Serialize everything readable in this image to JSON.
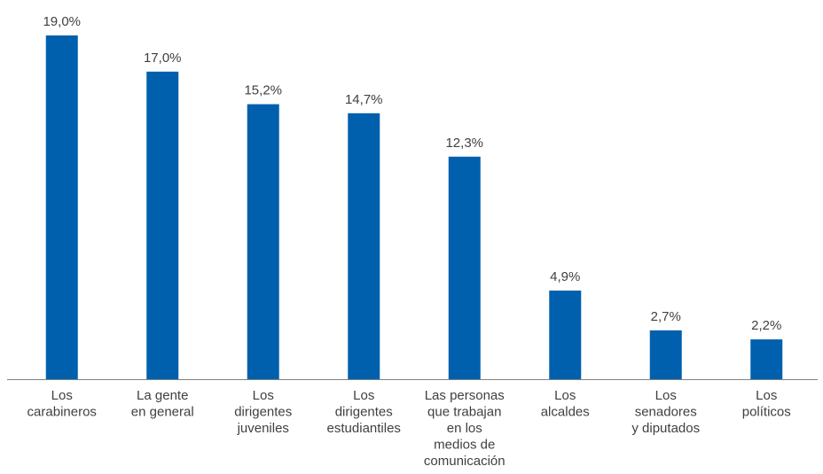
{
  "chart_data": {
    "type": "bar",
    "categories": [
      [
        "Los",
        "carabineros"
      ],
      [
        "La gente",
        "en general"
      ],
      [
        "Los",
        "dirigentes",
        "juveniles"
      ],
      [
        "Los",
        "dirigentes",
        "estudiantiles"
      ],
      [
        "Las personas",
        "que trabajan",
        "en los",
        "medios de",
        "comunicación"
      ],
      [
        "Los",
        "alcaldes"
      ],
      [
        "Los",
        "senadores",
        "y diputados"
      ],
      [
        "Los",
        "políticos"
      ]
    ],
    "values": [
      19.0,
      17.0,
      15.2,
      14.7,
      12.3,
      4.9,
      2.7,
      2.2
    ],
    "value_labels": [
      "19,0%",
      "17,0%",
      "15,2%",
      "14,7%",
      "12,3%",
      "4,9%",
      "2,7%",
      "2,2%"
    ],
    "title": "",
    "xlabel": "",
    "ylabel": "",
    "ylim": [
      0,
      19.0
    ],
    "grid": false,
    "legend": "none",
    "colors": {
      "bar": "#0060AE",
      "axis": "#808080",
      "text": "#404040"
    }
  }
}
